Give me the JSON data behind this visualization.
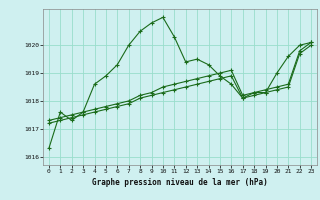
{
  "title": "Graphe pression niveau de la mer (hPa)",
  "background_color": "#cff0f0",
  "grid_color": "#99ddcc",
  "line_color": "#1a6b1a",
  "xlim": [
    -0.5,
    23.5
  ],
  "ylim": [
    1015.7,
    1021.3
  ],
  "yticks": [
    1016,
    1017,
    1018,
    1019,
    1020
  ],
  "xticks": [
    0,
    1,
    2,
    3,
    4,
    5,
    6,
    7,
    8,
    9,
    10,
    11,
    12,
    13,
    14,
    15,
    16,
    17,
    18,
    19,
    20,
    21,
    22,
    23
  ],
  "series": [
    [
      1016.3,
      1017.6,
      1017.3,
      1017.6,
      1018.6,
      1018.9,
      1019.3,
      1020.0,
      1020.5,
      1020.8,
      1021.0,
      1020.3,
      1019.4,
      1019.5,
      1019.3,
      1018.9,
      1018.6,
      1018.1,
      1018.3,
      1018.3,
      1019.0,
      1019.6,
      1020.0,
      1020.1
    ],
    [
      1017.3,
      1017.4,
      1017.5,
      1017.6,
      1017.7,
      1017.8,
      1017.9,
      1018.0,
      1018.2,
      1018.3,
      1018.5,
      1018.6,
      1018.7,
      1018.8,
      1018.9,
      1019.0,
      1019.1,
      1018.2,
      1018.3,
      1018.4,
      1018.5,
      1018.6,
      1019.8,
      1020.1
    ],
    [
      1017.2,
      1017.3,
      1017.4,
      1017.5,
      1017.6,
      1017.7,
      1017.8,
      1017.9,
      1018.1,
      1018.2,
      1018.3,
      1018.4,
      1018.5,
      1018.6,
      1018.7,
      1018.8,
      1018.9,
      1018.1,
      1018.2,
      1018.3,
      1018.4,
      1018.5,
      1019.7,
      1020.0
    ]
  ],
  "fig_width": 3.2,
  "fig_height": 2.0,
  "dpi": 100
}
